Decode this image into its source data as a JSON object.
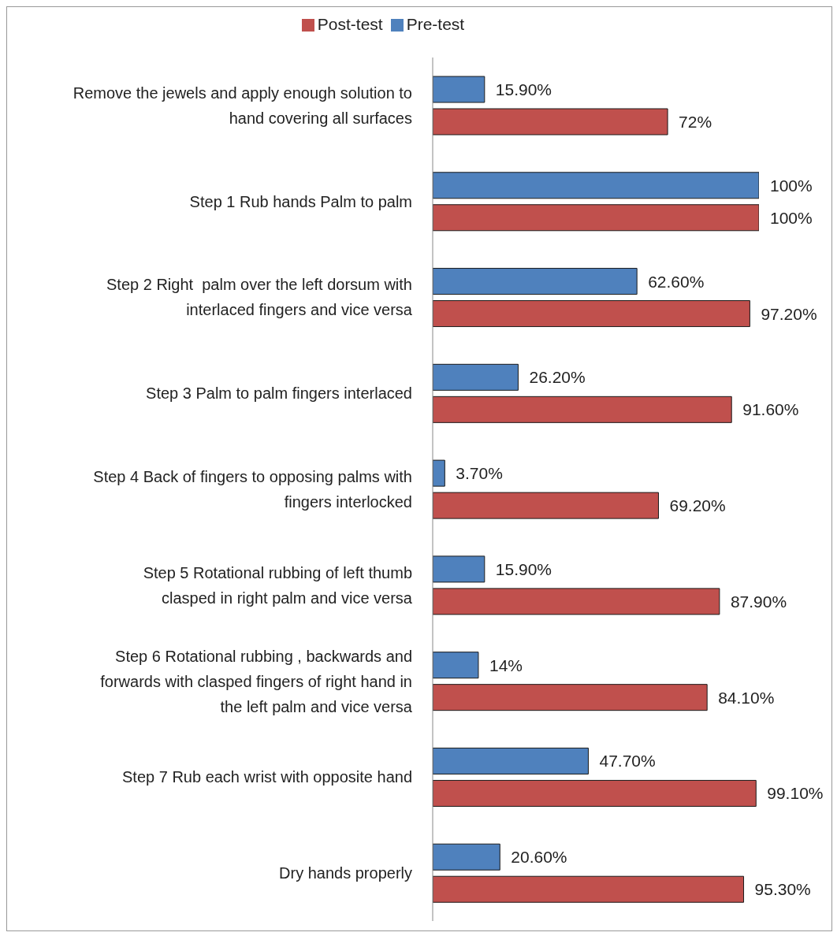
{
  "chart_data": {
    "type": "bar",
    "orientation": "horizontal",
    "legend": "top",
    "tick_labels": "y",
    "xlim": [
      0,
      100
    ],
    "categories": [
      "Remove the jewels and apply enough solution to hand covering all surfaces",
      "Step 1 Rub hands Palm to palm",
      "Step 2 Right  palm over the left dorsum with interlaced fingers and vice versa",
      "Step 3 Palm to palm fingers interlaced",
      "Step 4 Back of fingers to opposing palms with fingers interlocked",
      "Step 5 Rotational rubbing of left thumb clasped in right palm and vice versa",
      "Step 6 Rotational rubbing , backwards and forwards with clasped fingers of right hand in the left palm and vice versa",
      "Step 7 Rub each wrist with opposite hand",
      "Dry hands properly"
    ],
    "series": [
      {
        "name": "Pre-test",
        "color": "#4f81bd",
        "values": [
          15.9,
          100,
          62.6,
          26.2,
          3.7,
          15.9,
          14,
          47.7,
          20.6
        ],
        "value_labels": [
          "15.90%",
          "100%",
          "62.60%",
          "26.20%",
          "3.70%",
          "15.90%",
          "14%",
          "47.70%",
          "20.60%"
        ]
      },
      {
        "name": "Post-test",
        "color": "#c0504d",
        "values": [
          72,
          100,
          97.2,
          91.6,
          69.2,
          87.9,
          84.1,
          99.1,
          95.3
        ],
        "value_labels": [
          "72%",
          "100%",
          "97.20%",
          "91.60%",
          "69.20%",
          "87.90%",
          "84.10%",
          "99.10%",
          "95.30%"
        ]
      }
    ]
  }
}
